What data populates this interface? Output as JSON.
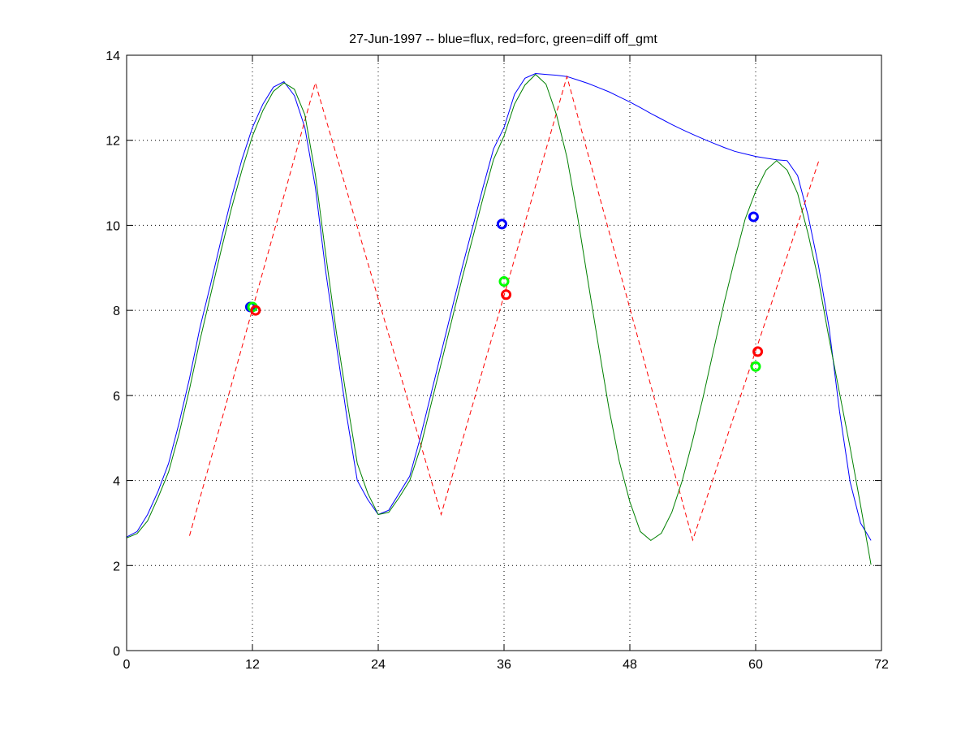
{
  "chart_data": {
    "type": "line",
    "title": "27-Jun-1997 -- blue=flux, red=forc, green=diff off_gmt",
    "xlabel": "",
    "ylabel": "",
    "xlim": [
      0,
      72
    ],
    "ylim": [
      0,
      14
    ],
    "xticks": [
      0,
      12,
      24,
      36,
      48,
      60,
      72
    ],
    "yticks": [
      0,
      2,
      4,
      6,
      8,
      10,
      12,
      14
    ],
    "grid": true,
    "series": [
      {
        "name": "flux",
        "color": "#0000ff",
        "style": "solid",
        "x": [
          0,
          1,
          2,
          3,
          4,
          5,
          6,
          7,
          8,
          9,
          10,
          11,
          12,
          13,
          14,
          15,
          16,
          17,
          18,
          19,
          20,
          21,
          22,
          23,
          24,
          25,
          26,
          27,
          28,
          29,
          30,
          31,
          32,
          33,
          34,
          35,
          36,
          37,
          38,
          39,
          40,
          41,
          42,
          43,
          44,
          45,
          46,
          47,
          48,
          49,
          50,
          51,
          52,
          53,
          54,
          55,
          56,
          57,
          58,
          59,
          60,
          61,
          62,
          63,
          64,
          65,
          66,
          67,
          68,
          69,
          70,
          71
        ],
        "y": [
          2.67,
          2.8,
          3.2,
          3.75,
          4.4,
          5.35,
          6.4,
          7.6,
          8.6,
          9.65,
          10.65,
          11.55,
          12.3,
          12.85,
          13.25,
          13.38,
          13.05,
          12.3,
          10.9,
          8.9,
          7.2,
          5.5,
          4.0,
          3.55,
          3.2,
          3.3,
          3.7,
          4.1,
          5.0,
          6.0,
          7.0,
          8.0,
          9.0,
          9.95,
          10.9,
          11.8,
          12.3,
          13.08,
          13.46,
          13.57,
          13.55,
          13.53,
          13.5,
          13.42,
          13.34,
          13.24,
          13.14,
          13.02,
          12.9,
          12.77,
          12.63,
          12.5,
          12.37,
          12.25,
          12.14,
          12.03,
          11.93,
          11.83,
          11.74,
          11.68,
          11.62,
          11.58,
          11.54,
          11.52,
          11.17,
          10.23,
          9.04,
          7.6,
          5.63,
          3.97,
          3.0,
          2.59
        ]
      },
      {
        "name": "forc",
        "color": "#ff0000",
        "style": "dashed",
        "x": [
          6,
          18,
          30,
          42,
          54,
          66
        ],
        "y": [
          2.7,
          13.35,
          3.2,
          13.5,
          2.6,
          11.5
        ]
      },
      {
        "name": "diff off_gmt",
        "color": "#008000",
        "style": "solid",
        "x": [
          0,
          1,
          2,
          3,
          4,
          5,
          6,
          7,
          8,
          9,
          10,
          11,
          12,
          13,
          14,
          15,
          16,
          17,
          18,
          19,
          20,
          21,
          22,
          23,
          24,
          25,
          26,
          27,
          28,
          29,
          30,
          31,
          32,
          33,
          34,
          35,
          36,
          37,
          38,
          39,
          40,
          41,
          42,
          43,
          44,
          45,
          46,
          47,
          48,
          49,
          50,
          51,
          52,
          53,
          54,
          55,
          56,
          57,
          58,
          59,
          60,
          61,
          62,
          63,
          64,
          65,
          66,
          67,
          68,
          69,
          70,
          71
        ],
        "y": [
          2.65,
          2.75,
          3.05,
          3.6,
          4.2,
          5.1,
          6.15,
          7.3,
          8.35,
          9.4,
          10.4,
          11.3,
          12.1,
          12.7,
          13.15,
          13.35,
          13.2,
          12.6,
          11.2,
          9.3,
          7.5,
          5.9,
          4.4,
          3.7,
          3.2,
          3.25,
          3.6,
          4.0,
          4.75,
          5.75,
          6.75,
          7.75,
          8.75,
          9.7,
          10.65,
          11.55,
          12.1,
          12.85,
          13.3,
          13.55,
          13.32,
          12.6,
          11.6,
          10.23,
          8.7,
          7.17,
          5.7,
          4.44,
          3.5,
          2.8,
          2.59,
          2.76,
          3.25,
          4.0,
          4.95,
          5.97,
          7.08,
          8.19,
          9.2,
          10.15,
          10.8,
          11.3,
          11.52,
          11.3,
          10.75,
          9.8,
          8.7,
          7.34,
          6.06,
          4.78,
          3.42,
          2.02
        ]
      }
    ],
    "markers": [
      {
        "series": "flux",
        "color": "#0000ff",
        "x": 11.8,
        "y": 8.08
      },
      {
        "series": "diff off_gmt",
        "color": "#00ff00",
        "x": 12.0,
        "y": 8.08
      },
      {
        "series": "forc",
        "color": "#ff0000",
        "x": 12.3,
        "y": 8.0
      },
      {
        "series": "flux",
        "color": "#0000ff",
        "x": 35.8,
        "y": 10.03
      },
      {
        "series": "diff off_gmt",
        "color": "#00ff00",
        "x": 36.0,
        "y": 8.68
      },
      {
        "series": "forc",
        "color": "#ff0000",
        "x": 36.2,
        "y": 8.37
      },
      {
        "series": "flux",
        "color": "#0000ff",
        "x": 59.8,
        "y": 10.2
      },
      {
        "series": "diff off_gmt",
        "color": "#00ff00",
        "x": 60.0,
        "y": 6.68
      },
      {
        "series": "forc",
        "color": "#ff0000",
        "x": 60.2,
        "y": 7.03
      }
    ]
  }
}
